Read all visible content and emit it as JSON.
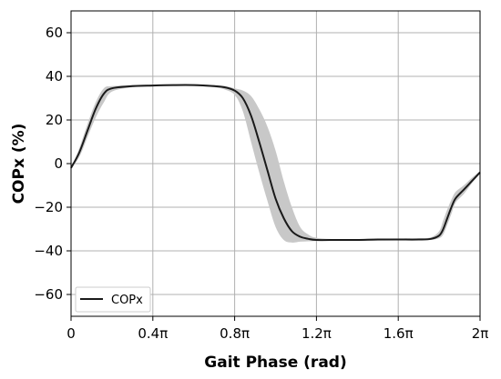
{
  "chart_data": {
    "type": "line",
    "xlabel": "Gait Phase (rad)",
    "ylabel": "COPx (%)",
    "xlim": [
      0,
      2
    ],
    "ylim": [
      -70,
      70
    ],
    "x_unit": "pi",
    "x_ticks": [
      0,
      0.4,
      0.8,
      1.2,
      1.6,
      2.0
    ],
    "x_tick_labels": [
      "0",
      "0.4π",
      "0.8π",
      "1.2π",
      "1.6π",
      "2π"
    ],
    "y_ticks": [
      -60,
      -40,
      -20,
      0,
      20,
      40,
      60
    ],
    "y_tick_labels": [
      "−60",
      "−40",
      "−20",
      "0",
      "20",
      "40",
      "60"
    ],
    "grid": true,
    "legend": {
      "position": "bottom-left",
      "entries": [
        "COPx"
      ]
    },
    "series": [
      {
        "name": "COPx",
        "color": "#1a1a1a",
        "band_color": "#c8c8c8",
        "x": [
          0,
          0.04,
          0.08,
          0.12,
          0.16,
          0.2,
          0.3,
          0.4,
          0.5,
          0.6,
          0.7,
          0.75,
          0.8,
          0.84,
          0.88,
          0.92,
          0.96,
          1.0,
          1.04,
          1.08,
          1.12,
          1.16,
          1.2,
          1.3,
          1.4,
          1.5,
          1.6,
          1.7,
          1.76,
          1.8,
          1.82,
          1.84,
          1.86,
          1.88,
          1.92,
          1.96,
          2.0
        ],
        "y": [
          -2,
          5,
          15,
          25,
          32,
          34.5,
          35.5,
          35.8,
          36,
          36,
          35.5,
          35,
          33.5,
          30,
          22,
          10,
          -3,
          -16,
          -25,
          -31,
          -33.5,
          -34.5,
          -35,
          -35,
          -35,
          -34.8,
          -34.8,
          -34.8,
          -34.5,
          -33,
          -30,
          -25,
          -20,
          -16,
          -12,
          -8,
          -4
        ],
        "lower": [
          -2,
          3,
          12,
          21,
          28,
          33,
          35,
          35.5,
          35.6,
          35.6,
          35,
          34,
          31.5,
          24,
          10,
          -4,
          -17,
          -29,
          -35,
          -36.2,
          -35.8,
          -35.6,
          -35.5,
          -35.4,
          -35.4,
          -35.3,
          -35.2,
          -35.2,
          -35,
          -34.2,
          -32.5,
          -28,
          -23,
          -18,
          -14,
          -9,
          -4.5
        ],
        "upper": [
          -2,
          7,
          18,
          28,
          34.5,
          35.5,
          36,
          36.2,
          36.3,
          36.3,
          36,
          35.6,
          34.5,
          33.5,
          31,
          25,
          17,
          6,
          -8,
          -20,
          -29,
          -32.5,
          -34,
          -34.7,
          -34.7,
          -34.4,
          -34.3,
          -34.2,
          -33.8,
          -31,
          -26,
          -21,
          -16.5,
          -13,
          -10,
          -6.5,
          -3.5
        ]
      }
    ]
  }
}
